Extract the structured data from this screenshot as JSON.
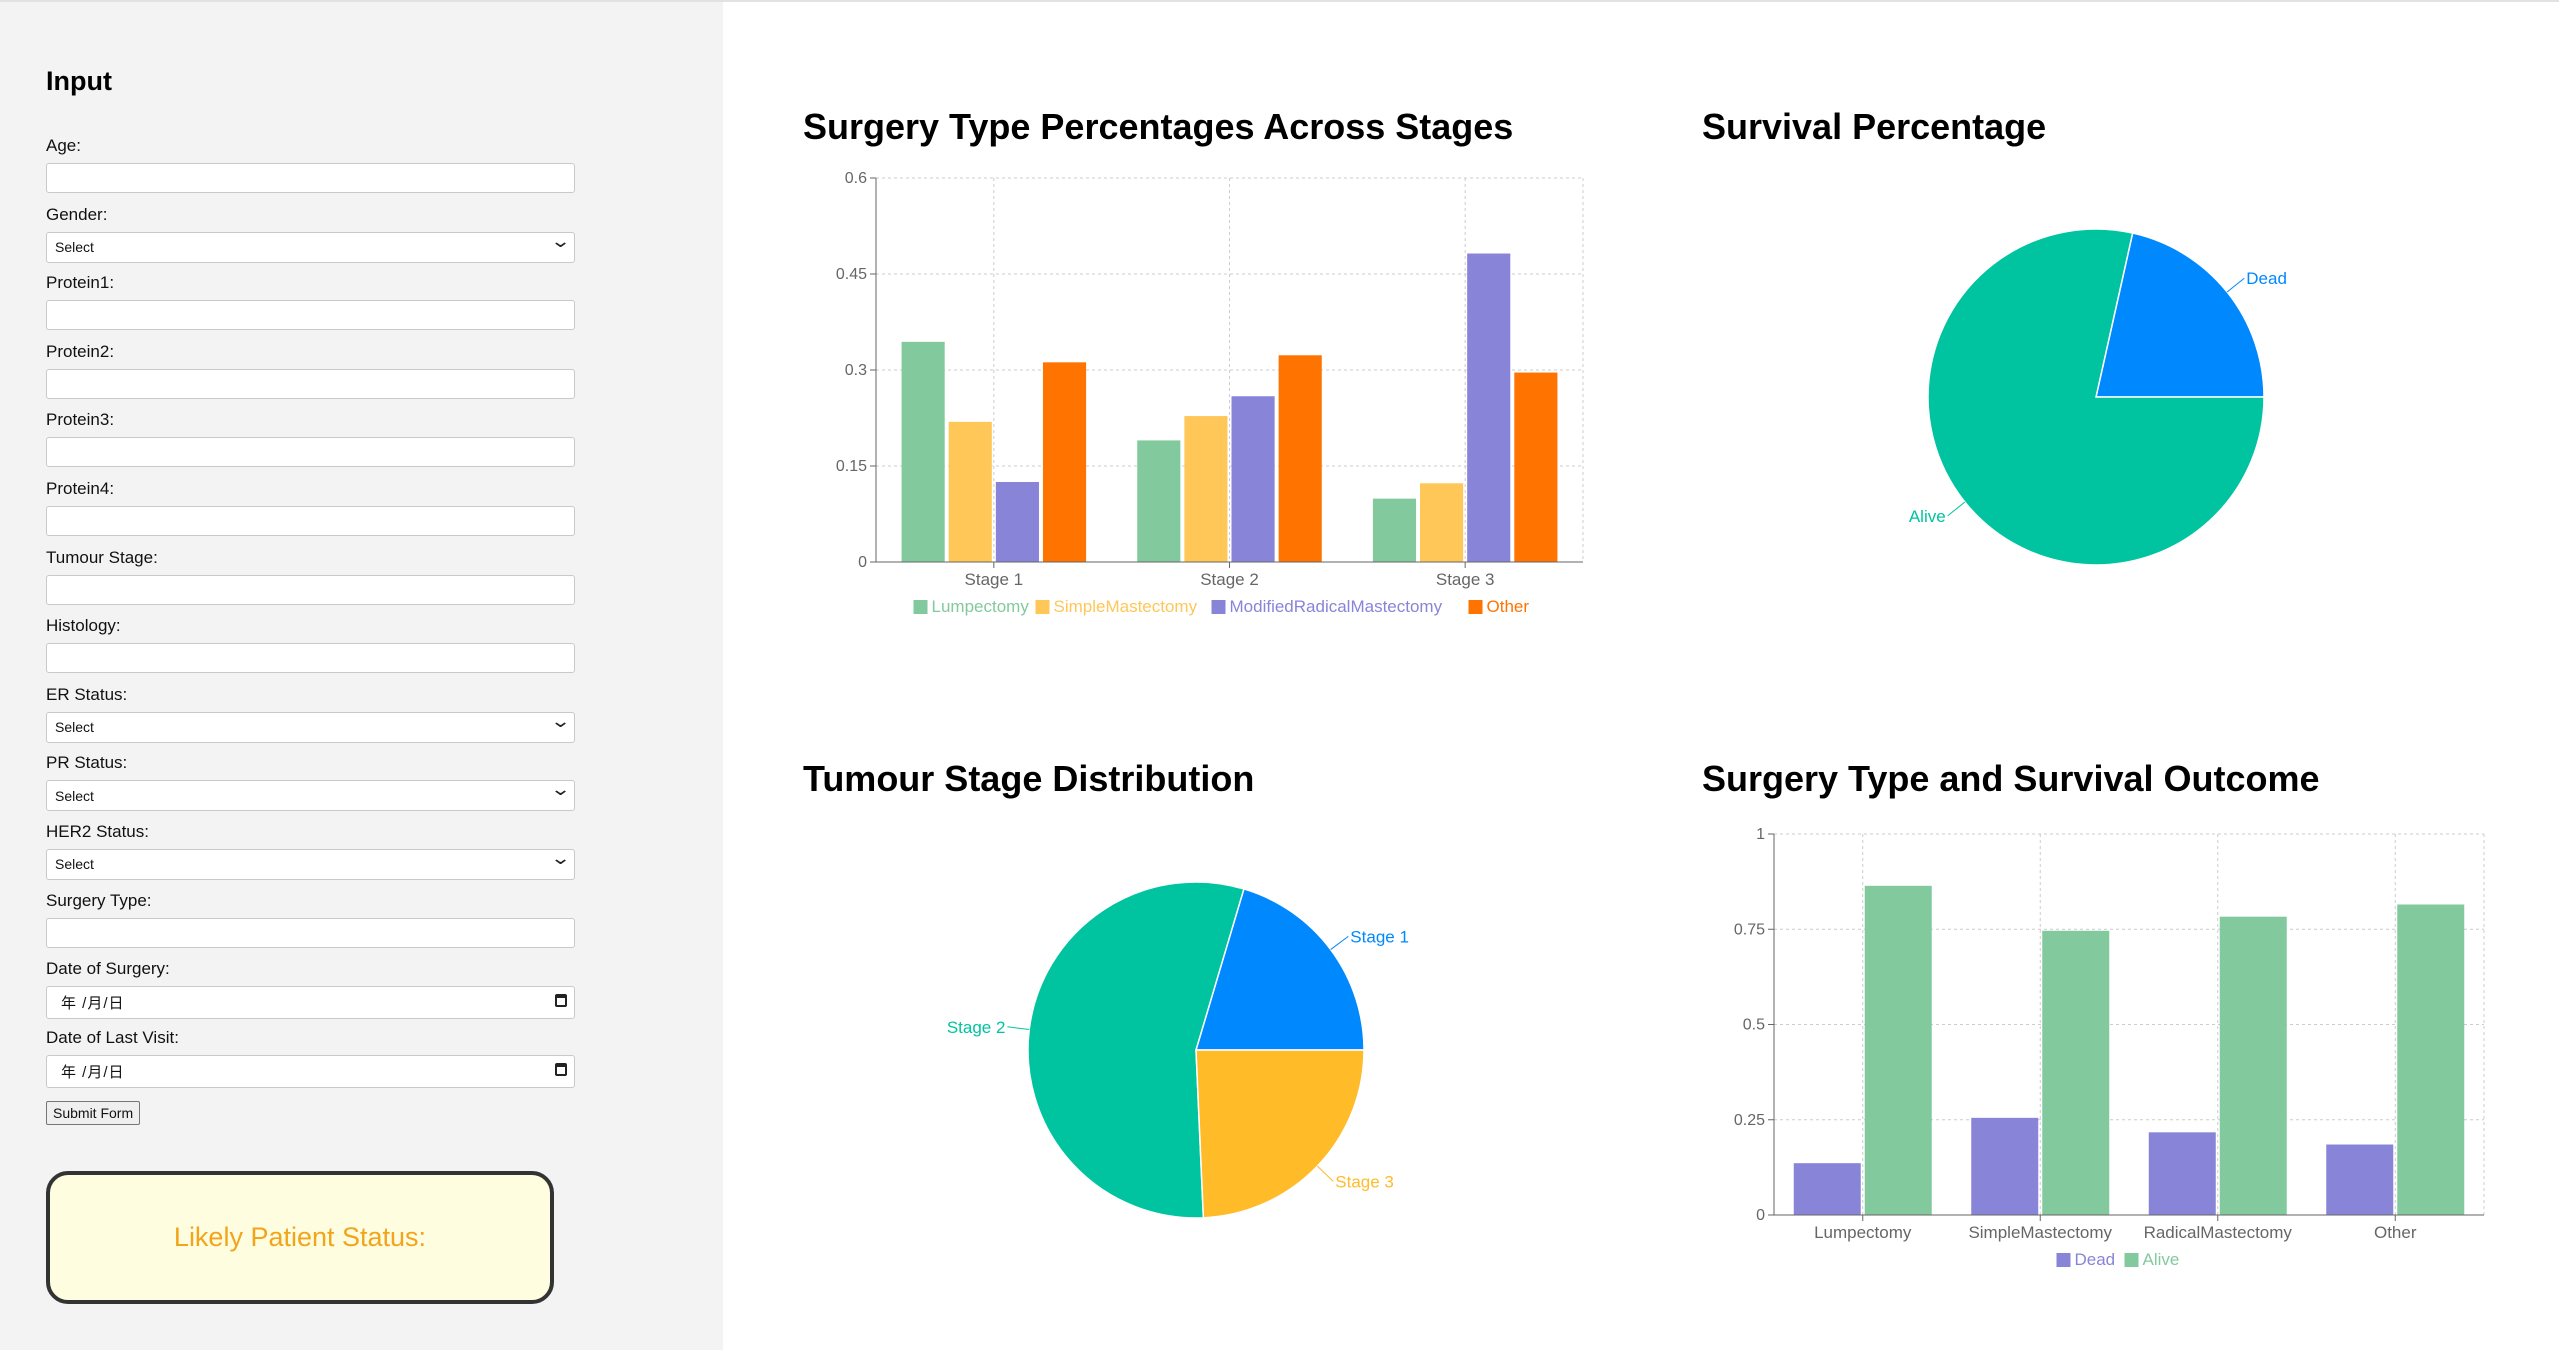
{
  "sidebar": {
    "title": "Input",
    "fields": [
      {
        "label": "Age:",
        "type": "text",
        "value": ""
      },
      {
        "label": "Gender:",
        "type": "select",
        "value": "Select"
      },
      {
        "label": "Protein1:",
        "type": "text",
        "value": ""
      },
      {
        "label": "Protein2:",
        "type": "text",
        "value": ""
      },
      {
        "label": "Protein3:",
        "type": "text",
        "value": ""
      },
      {
        "label": "Protein4:",
        "type": "text",
        "value": ""
      },
      {
        "label": "Tumour Stage:",
        "type": "text",
        "value": ""
      },
      {
        "label": "Histology:",
        "type": "text",
        "value": ""
      },
      {
        "label": "ER Status:",
        "type": "select",
        "value": "Select"
      },
      {
        "label": "PR Status:",
        "type": "select",
        "value": "Select"
      },
      {
        "label": "HER2 Status:",
        "type": "select",
        "value": "Select"
      },
      {
        "label": "Surgery Type:",
        "type": "text",
        "value": ""
      },
      {
        "label": "Date of Surgery:",
        "type": "date",
        "value": "年 /月/日"
      },
      {
        "label": "Date of Last Visit:",
        "type": "date",
        "value": "年 /月/日"
      }
    ],
    "submit_label": "Submit Form",
    "status_label": "Likely Patient Status:"
  },
  "chart_data": [
    {
      "type": "bar",
      "title": "Surgery Type Percentages Across Stages",
      "categories": [
        "Stage 1",
        "Stage 2",
        "Stage 3"
      ],
      "series": [
        {
          "name": "Lumpectomy",
          "color": "#82ca9d",
          "values": [
            0.344,
            0.19,
            0.099
          ]
        },
        {
          "name": "SimpleMastectomy",
          "color": "#ffc658",
          "values": [
            0.219,
            0.228,
            0.123
          ]
        },
        {
          "name": "ModifiedRadicalMastectomy",
          "color": "#8884d8",
          "values": [
            0.125,
            0.259,
            0.482
          ]
        },
        {
          "name": "Other",
          "color": "#ff7300",
          "values": [
            0.312,
            0.323,
            0.296
          ]
        }
      ],
      "yticks": [
        "0",
        "0.15",
        "0.3",
        "0.45",
        "0.6"
      ],
      "ylim": [
        0,
        0.6
      ],
      "grid": true,
      "legend": "bottom",
      "xlabel": "",
      "ylabel": ""
    },
    {
      "type": "pie",
      "title": "Survival Percentage",
      "slices": [
        {
          "label": "Dead",
          "value": 0.215,
          "color": "#0088fe"
        },
        {
          "label": "Alive",
          "value": 0.785,
          "color": "#00c49f"
        }
      ]
    },
    {
      "type": "pie",
      "title": "Tumour Stage Distribution",
      "slices": [
        {
          "label": "Stage 1",
          "value": 0.204,
          "color": "#0088fe"
        },
        {
          "label": "Stage 2",
          "value": 0.553,
          "color": "#00c49f"
        },
        {
          "label": "Stage 3",
          "value": 0.243,
          "color": "#ffbb28"
        }
      ]
    },
    {
      "type": "bar",
      "title": "Surgery Type and Survival Outcome",
      "categories": [
        "Lumpectomy",
        "SimpleMastectomy",
        "RadicalMastectomy",
        "Other"
      ],
      "series": [
        {
          "name": "Dead",
          "color": "#8884d8",
          "values": [
            0.136,
            0.255,
            0.217,
            0.185
          ]
        },
        {
          "name": "Alive",
          "color": "#82ca9d",
          "values": [
            0.864,
            0.746,
            0.783,
            0.815
          ]
        }
      ],
      "yticks": [
        "0",
        "0.25",
        "0.5",
        "0.75",
        "1"
      ],
      "ylim": [
        0,
        1
      ],
      "grid": true,
      "legend": "bottom",
      "xlabel": "",
      "ylabel": ""
    }
  ]
}
